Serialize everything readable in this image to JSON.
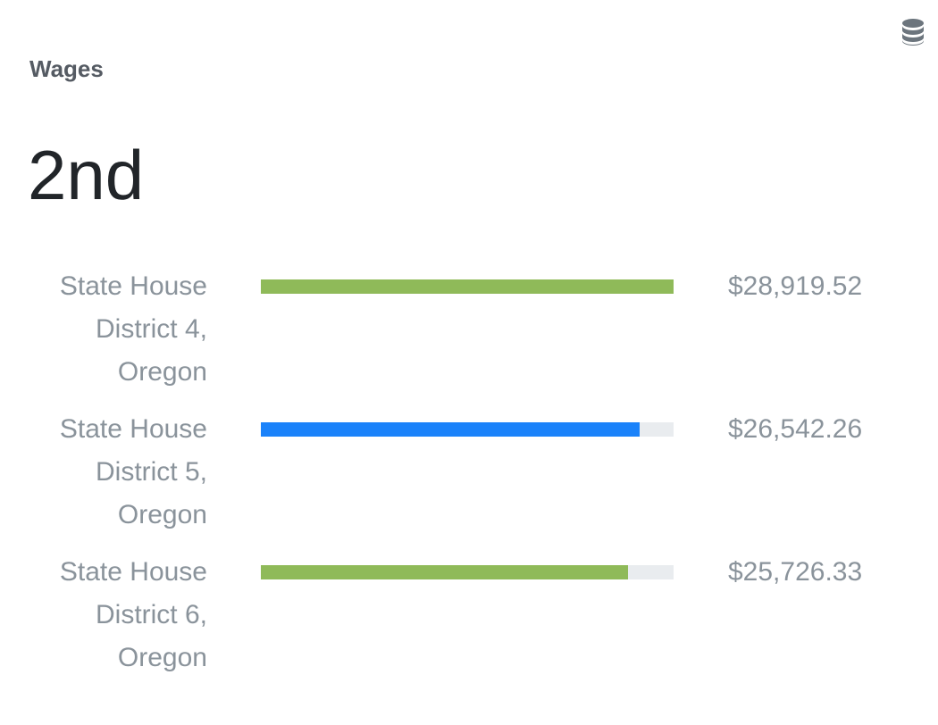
{
  "card": {
    "title": "Wages",
    "rank": "2nd",
    "icon": "database-icon"
  },
  "chart_data": {
    "type": "bar",
    "orientation": "horizontal",
    "title": "Wages",
    "categories": [
      "State House District 4, Oregon",
      "State House District 5, Oregon",
      "State House District 6, Oregon"
    ],
    "values": [
      28919.52,
      26542.26,
      25726.33
    ],
    "value_labels": [
      "$28,919.52",
      "$26,542.26",
      "$25,726.33"
    ],
    "bar_colors": [
      "#8fba59",
      "#1a82fa",
      "#8fba59"
    ],
    "track_color": "#e9ecef",
    "xlim": [
      0,
      28919.52
    ],
    "grid": false,
    "legend": "none"
  }
}
